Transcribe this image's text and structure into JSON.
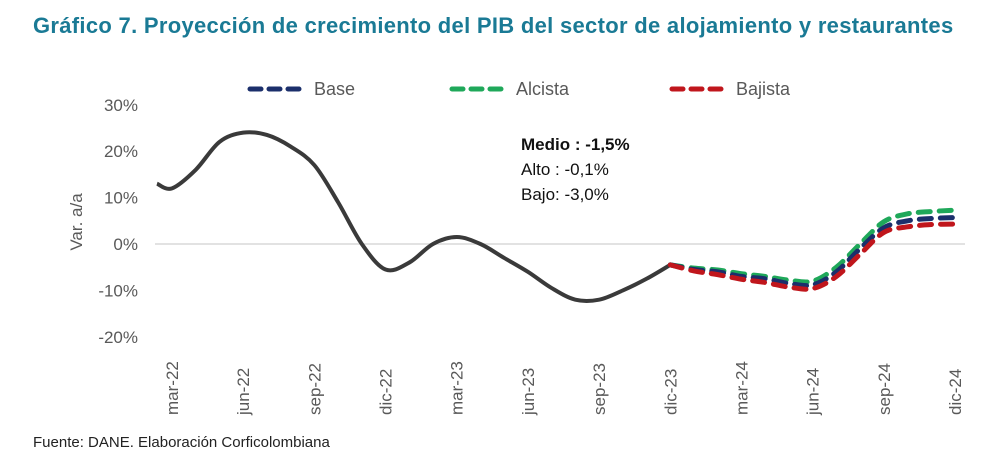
{
  "title": "Gráfico 7. Proyección de crecimiento del PIB del sector de alojamiento y restaurantes",
  "source": "Fuente: DANE. Elaboración Corficolombiana",
  "chart_data": {
    "type": "line",
    "title": "Gráfico 7. Proyección de crecimiento del PIB del sector de alojamiento y restaurantes",
    "ylabel": "Var. a/a",
    "xlabel": "",
    "ylim": [
      -20,
      30
    ],
    "yticks": [
      "30%",
      "20%",
      "10%",
      "0%",
      "-10%",
      "-20%"
    ],
    "ytick_values": [
      30,
      20,
      10,
      0,
      -10,
      -20
    ],
    "xticks": [
      "mar-22",
      "jun-22",
      "sep-22",
      "dic-22",
      "mar-23",
      "jun-23",
      "sep-23",
      "dic-23",
      "mar-24",
      "jun-24",
      "sep-24",
      "dic-24"
    ],
    "legend_position": "top",
    "legend": [
      "Base",
      "Alcista",
      "Bajista"
    ],
    "colors": {
      "historical": "#3a3a3a",
      "Base": "#1b2f6b",
      "Alcista": "#1fa85a",
      "Bajista": "#c0161c",
      "zero_line": "#d9d9d9",
      "title": "#1a7a95"
    },
    "historical": {
      "x": [
        "feb-22",
        "mar-22",
        "abr-22",
        "may-22",
        "jun-22",
        "jul-22",
        "ago-22",
        "sep-22",
        "oct-22",
        "nov-22",
        "dic-22",
        "ene-23",
        "feb-23",
        "mar-23",
        "abr-23",
        "may-23",
        "jun-23",
        "jul-23",
        "ago-23",
        "sep-23",
        "oct-23",
        "nov-23",
        "dic-23"
      ],
      "values": [
        13,
        12,
        16,
        22,
        24,
        23.5,
        21,
        17,
        9,
        0,
        -5.5,
        -4,
        0,
        1.5,
        0,
        -3,
        -6,
        -9.5,
        -12,
        -12,
        -10,
        -7.5,
        -4.5
      ]
    },
    "forecast_x": [
      "dic-23",
      "ene-24",
      "feb-24",
      "mar-24",
      "abr-24",
      "may-24",
      "jun-24",
      "jul-24",
      "ago-24",
      "sep-24",
      "oct-24",
      "nov-24",
      "dic-24"
    ],
    "series": [
      {
        "name": "Base",
        "values": [
          -4.5,
          -5.5,
          -6,
          -7,
          -7.5,
          -8.5,
          -8.8,
          -6,
          -1,
          3.5,
          5,
          5.5,
          5.7
        ]
      },
      {
        "name": "Alcista",
        "values": [
          -4.5,
          -5.2,
          -5.6,
          -6.4,
          -7,
          -7.8,
          -8,
          -5,
          0,
          4.8,
          6.5,
          7,
          7.3
        ]
      },
      {
        "name": "Bajista",
        "values": [
          -4.5,
          -5.8,
          -6.6,
          -7.6,
          -8.3,
          -9.3,
          -9.6,
          -7,
          -2.2,
          2.5,
          3.7,
          4.2,
          4.3
        ]
      }
    ],
    "annotation": {
      "medio": "Medio : -1,5%",
      "alto": "Alto : -0,1%",
      "bajo": "Bajo: -3,0%"
    }
  }
}
